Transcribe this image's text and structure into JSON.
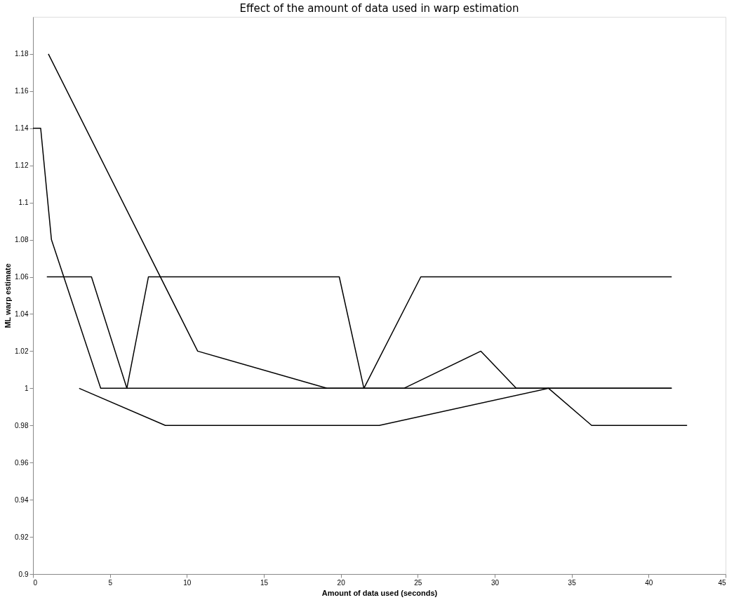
{
  "chart_data": {
    "type": "line",
    "title": "Effect of the amount of data used in warp estimation",
    "xlabel": "Amount of data used (seconds)",
    "ylabel": "ML warp estimate",
    "xlim": [
      0,
      45
    ],
    "xticks": [
      0,
      5,
      10,
      15,
      20,
      25,
      30,
      35,
      40,
      45
    ],
    "ylim": [
      0.9,
      1.2
    ],
    "yticks": [
      0.9,
      0.92,
      0.94,
      0.96,
      0.98,
      1,
      1.02,
      1.04,
      1.06,
      1.08,
      1.1,
      1.12,
      1.14,
      1.16,
      1.18
    ],
    "grid": false,
    "marker": "none",
    "line_style": "solid",
    "series": [
      {
        "color": "#000000",
        "x": [
          0,
          0.5,
          1.2,
          4.4,
          41.5
        ],
        "values": [
          1.14,
          1.14,
          1.08,
          1.0,
          1.0
        ]
      },
      {
        "color": "#000000",
        "x": [
          1.0,
          10.7,
          19.1,
          24.1,
          29.1,
          31.4,
          41.5
        ],
        "values": [
          1.18,
          1.02,
          1.0,
          1.0,
          1.02,
          1.0,
          1.0
        ]
      },
      {
        "color": "#000000",
        "x": [
          0.9,
          3.8,
          6.1,
          7.5,
          19.9,
          21.5,
          25.2,
          41.5
        ],
        "values": [
          1.06,
          1.06,
          1.0,
          1.06,
          1.06,
          1.0,
          1.06,
          1.06
        ]
      },
      {
        "color": "#000000",
        "x": [
          3.0,
          8.6,
          22.5,
          33.5,
          36.3,
          42.5
        ],
        "values": [
          1.0,
          0.98,
          0.98,
          1.0,
          0.98,
          0.98
        ]
      }
    ]
  }
}
